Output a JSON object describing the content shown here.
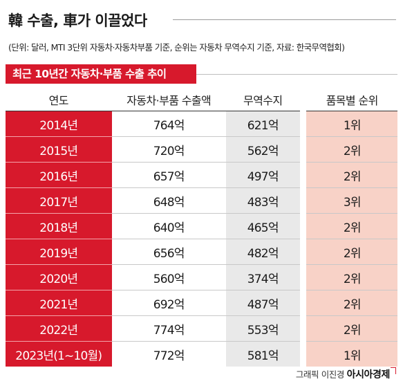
{
  "header": {
    "title": "韓 수출, 車가 이끌었다",
    "source": "(단위: 달러, MTI 3단위 자동차·자동차부품 기준, 순위는 자동차 무역수지 기준, 자료: 한국무역협회)"
  },
  "table": {
    "subtitle": "최근 10년간 자동차·부품 수출 추이",
    "columns": [
      "연도",
      "자동차·부품 수출액",
      "무역수지",
      "품목별 순위"
    ],
    "rows": [
      {
        "year": "2014년",
        "export": "764억",
        "balance": "621억",
        "rank": "1위"
      },
      {
        "year": "2015년",
        "export": "720억",
        "balance": "562억",
        "rank": "2위"
      },
      {
        "year": "2016년",
        "export": "657억",
        "balance": "497억",
        "rank": "2위"
      },
      {
        "year": "2017년",
        "export": "648억",
        "balance": "483억",
        "rank": "3위"
      },
      {
        "year": "2018년",
        "export": "640억",
        "balance": "465억",
        "rank": "2위"
      },
      {
        "year": "2019년",
        "export": "656억",
        "balance": "482억",
        "rank": "2위"
      },
      {
        "year": "2020년",
        "export": "560억",
        "balance": "374억",
        "rank": "2위"
      },
      {
        "year": "2021년",
        "export": "692억",
        "balance": "487억",
        "rank": "2위"
      },
      {
        "year": "2022년",
        "export": "774억",
        "balance": "553억",
        "rank": "2위"
      },
      {
        "year": "2023년(1~10월)",
        "export": "772억",
        "balance": "581억",
        "rank": "1위"
      }
    ]
  },
  "footer": {
    "credit": "그래픽 이진경",
    "brand": "아시아경제"
  },
  "colors": {
    "accent": "#d7192c",
    "balance_bg": "#e9e9e9",
    "rank_bg": "#f8d2c7"
  }
}
